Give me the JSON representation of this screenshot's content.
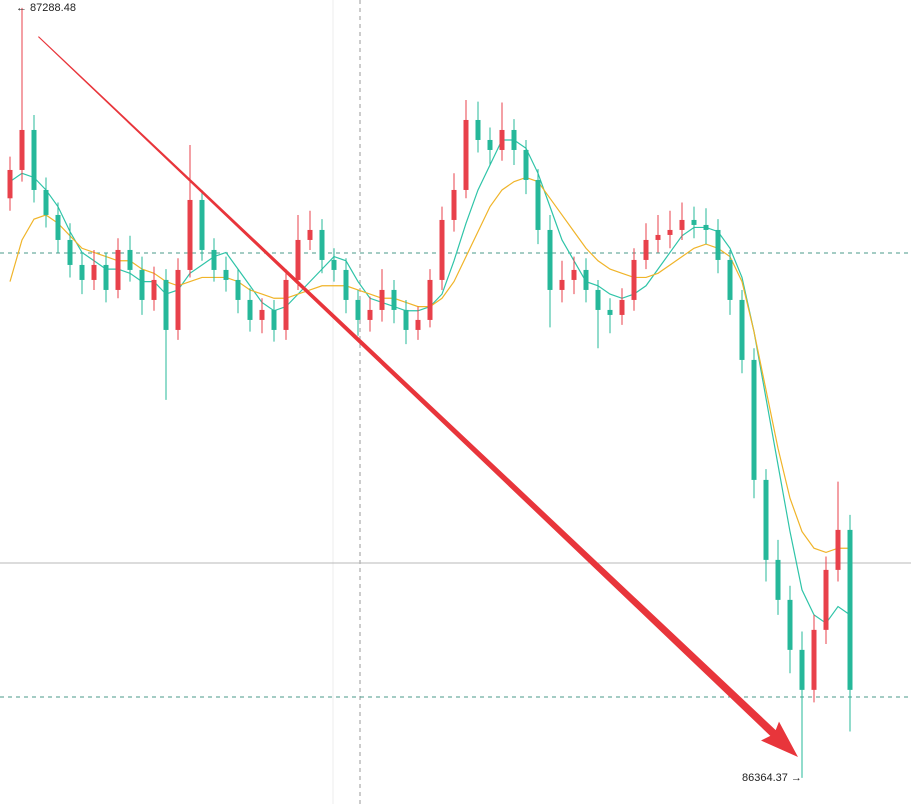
{
  "chart_data": {
    "type": "candlestick",
    "ylim": [
      86333,
      87298
    ],
    "up_color": "#e8414b",
    "down_color": "#26b89a",
    "open": [
      87060,
      87094,
      87142,
      87070,
      87040,
      87010,
      86980,
      86962,
      86980,
      86950,
      86998,
      86974,
      86938,
      86962,
      86902,
      86974,
      87058,
      86998,
      86974,
      86962,
      86938,
      86914,
      86926,
      86902,
      86962,
      87010,
      87022,
      86986,
      86974,
      86938,
      86914,
      86926,
      86950,
      86926,
      86902,
      86914,
      86962,
      87034,
      87070,
      87154,
      87130,
      87118,
      87142,
      87118,
      87082,
      87022,
      86950,
      86962,
      86974,
      86950,
      86926,
      86920,
      86938,
      86986,
      87010,
      87016,
      87022,
      87034,
      87028,
      87022,
      86986,
      86938,
      86866,
      86722,
      86626,
      86578,
      86518,
      86470,
      86542,
      86614,
      86662
    ],
    "high": [
      87110,
      87288.48,
      87160,
      87085,
      87055,
      87030,
      86995,
      86998,
      86995,
      87012,
      87015,
      86990,
      86978,
      86975,
      86988,
      87124,
      87070,
      87012,
      86990,
      86975,
      86952,
      86940,
      86938,
      86975,
      87040,
      87045,
      87035,
      87000,
      86988,
      86950,
      86942,
      86975,
      86962,
      86938,
      86930,
      86975,
      87050,
      87090,
      87178,
      87176,
      87145,
      87175,
      87155,
      87130,
      87095,
      87040,
      86985,
      86990,
      86988,
      86962,
      86940,
      86952,
      87000,
      87030,
      87040,
      87045,
      87055,
      87050,
      87048,
      87035,
      86998,
      86950,
      86880,
      86735,
      86650,
      86595,
      86540,
      86560,
      86630,
      86720,
      86680
    ],
    "low": [
      87045,
      87080,
      87055,
      87025,
      86995,
      86965,
      86945,
      86950,
      86935,
      86940,
      86960,
      86920,
      86925,
      86818,
      86890,
      86965,
      86985,
      86960,
      86948,
      86922,
      86900,
      86898,
      86888,
      86890,
      86950,
      86998,
      86970,
      86960,
      86922,
      86895,
      86900,
      86912,
      86910,
      86885,
      86890,
      86905,
      86950,
      87020,
      87060,
      87115,
      87100,
      87105,
      87100,
      87065,
      87005,
      86905,
      86935,
      86945,
      86935,
      86880,
      86898,
      86908,
      86925,
      86975,
      86995,
      87000,
      87010,
      87012,
      87005,
      86970,
      86920,
      86850,
      86700,
      86600,
      86560,
      86490,
      86364.37,
      86455,
      86525,
      86600,
      86420
    ],
    "close": [
      87094,
      87142,
      87070,
      87040,
      87010,
      86980,
      86962,
      86980,
      86950,
      86998,
      86974,
      86938,
      86962,
      86902,
      86974,
      87058,
      86998,
      86974,
      86962,
      86938,
      86914,
      86926,
      86902,
      86962,
      87010,
      87022,
      86986,
      86974,
      86938,
      86914,
      86926,
      86950,
      86926,
      86902,
      86914,
      86962,
      87034,
      87070,
      87154,
      87130,
      87118,
      87142,
      87118,
      87082,
      87022,
      86950,
      86962,
      86974,
      86950,
      86926,
      86920,
      86938,
      86986,
      87010,
      87016,
      87022,
      87034,
      87028,
      87022,
      86986,
      86938,
      86866,
      86722,
      86626,
      86578,
      86518,
      86470,
      86542,
      86614,
      86662,
      86470
    ],
    "lines": [
      {
        "color": "#2fc4a8",
        "values": [
          87080,
          87090,
          87085,
          87070,
          87050,
          87020,
          86995,
          86985,
          86975,
          86975,
          86970,
          86960,
          86960,
          86945,
          86950,
          86970,
          86980,
          86990,
          86995,
          86975,
          86955,
          86935,
          86925,
          86930,
          86945,
          86960,
          86975,
          86990,
          86985,
          86960,
          86940,
          86935,
          86930,
          86925,
          86925,
          86930,
          86945,
          86985,
          87030,
          87070,
          87100,
          87130,
          87130,
          87120,
          87090,
          87050,
          87010,
          86985,
          86960,
          86955,
          86945,
          86940,
          86945,
          86955,
          86975,
          86995,
          87015,
          87025,
          87025,
          87020,
          87000,
          86965,
          86900,
          86820,
          86740,
          86660,
          86590,
          86560,
          86550,
          86570,
          86560
        ]
      },
      {
        "color": "#f0b429",
        "values": [
          86960,
          87010,
          87035,
          87040,
          87030,
          87015,
          87000,
          86995,
          86990,
          86985,
          86985,
          86975,
          86970,
          86960,
          86955,
          86960,
          86965,
          86965,
          86965,
          86960,
          86950,
          86945,
          86940,
          86940,
          86945,
          86950,
          86955,
          86955,
          86955,
          86950,
          86945,
          86940,
          86940,
          86935,
          86930,
          86930,
          86940,
          86960,
          86990,
          87020,
          87050,
          87070,
          87080,
          87085,
          87080,
          87060,
          87040,
          87020,
          87000,
          86985,
          86975,
          86970,
          86965,
          86965,
          86970,
          86980,
          86990,
          87000,
          87005,
          87000,
          86990,
          86960,
          86900,
          86830,
          86760,
          86700,
          86660,
          86640,
          86635,
          86640,
          86640
        ]
      }
    ],
    "extremes": [
      {
        "value": 87288.48,
        "label": "← 87288.48"
      },
      {
        "value": 86364.37,
        "label": "86364.37 →"
      }
    ]
  }
}
